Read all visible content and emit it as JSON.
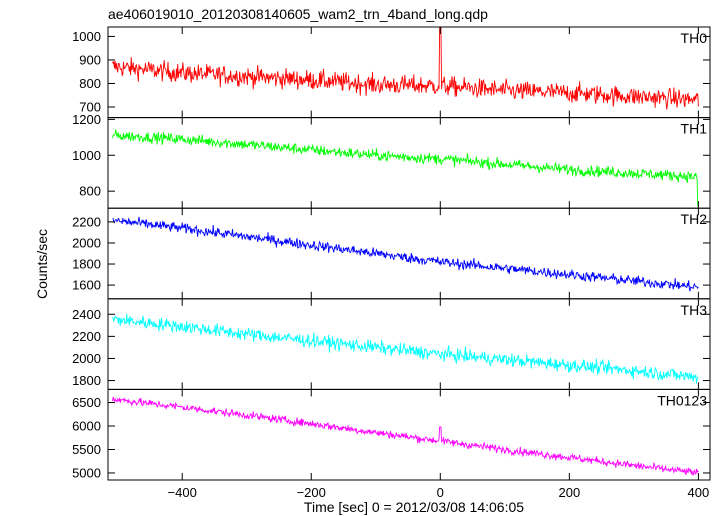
{
  "chart_data": {
    "type": "line",
    "title": "ae406019010_20120308140605_wam2_trn_4band_long.qdp",
    "xlabel": "Time [sec] 0 = 2012/03/08 14:06:05",
    "ylabel": "Counts/sec",
    "xlim": [
      -515,
      418
    ],
    "xticks": [
      -400,
      -200,
      0,
      200,
      400
    ],
    "grid": false,
    "panels": [
      {
        "name": "TH0",
        "color": "#ff0000",
        "ylim": [
          655,
          1040
        ],
        "yticks": [
          700,
          800,
          900,
          1000
        ],
        "x": [
          -500,
          -400,
          -300,
          -200,
          -100,
          0,
          100,
          200,
          300,
          400
        ],
        "values": [
          870,
          845,
          830,
          815,
          795,
          790,
          770,
          760,
          745,
          730
        ],
        "noise": 38,
        "features": [
          {
            "x": 0,
            "value": 1040
          }
        ]
      },
      {
        "name": "TH1",
        "color": "#00ff00",
        "ylim": [
          705,
          1210
        ],
        "yticks": [
          800,
          1000,
          1200
        ],
        "x": [
          -500,
          -400,
          -300,
          -200,
          -100,
          0,
          100,
          200,
          300,
          400
        ],
        "values": [
          1110,
          1090,
          1060,
          1030,
          1000,
          980,
          950,
          920,
          900,
          880
        ],
        "noise": 28,
        "features": [
          {
            "x": 400,
            "value": 720
          }
        ]
      },
      {
        "name": "TH2",
        "color": "#0000ff",
        "ylim": [
          1470,
          2330
        ],
        "yticks": [
          1600,
          1800,
          2000,
          2200
        ],
        "x": [
          -500,
          -400,
          -300,
          -200,
          -100,
          0,
          100,
          200,
          300,
          400
        ],
        "values": [
          2210,
          2140,
          2060,
          1980,
          1900,
          1820,
          1760,
          1700,
          1640,
          1580
        ],
        "noise": 45,
        "features": []
      },
      {
        "name": "TH3",
        "color": "#00ffff",
        "ylim": [
          1720,
          2540
        ],
        "yticks": [
          1800,
          2000,
          2200,
          2400
        ],
        "x": [
          -500,
          -400,
          -300,
          -200,
          -100,
          0,
          100,
          200,
          300,
          400
        ],
        "values": [
          2350,
          2290,
          2220,
          2160,
          2100,
          2040,
          1990,
          1940,
          1890,
          1830
        ],
        "noise": 55,
        "features": []
      },
      {
        "name": "TH0123",
        "color": "#ff00ff",
        "ylim": [
          4850,
          6780
        ],
        "yticks": [
          5000,
          5500,
          6000,
          6500
        ],
        "x": [
          -500,
          -400,
          -300,
          -200,
          -100,
          0,
          100,
          200,
          300,
          400
        ],
        "values": [
          6560,
          6400,
          6230,
          6050,
          5860,
          5680,
          5500,
          5330,
          5160,
          5000
        ],
        "noise": 75,
        "features": [
          {
            "x": 0,
            "value": 5980
          }
        ]
      }
    ]
  }
}
